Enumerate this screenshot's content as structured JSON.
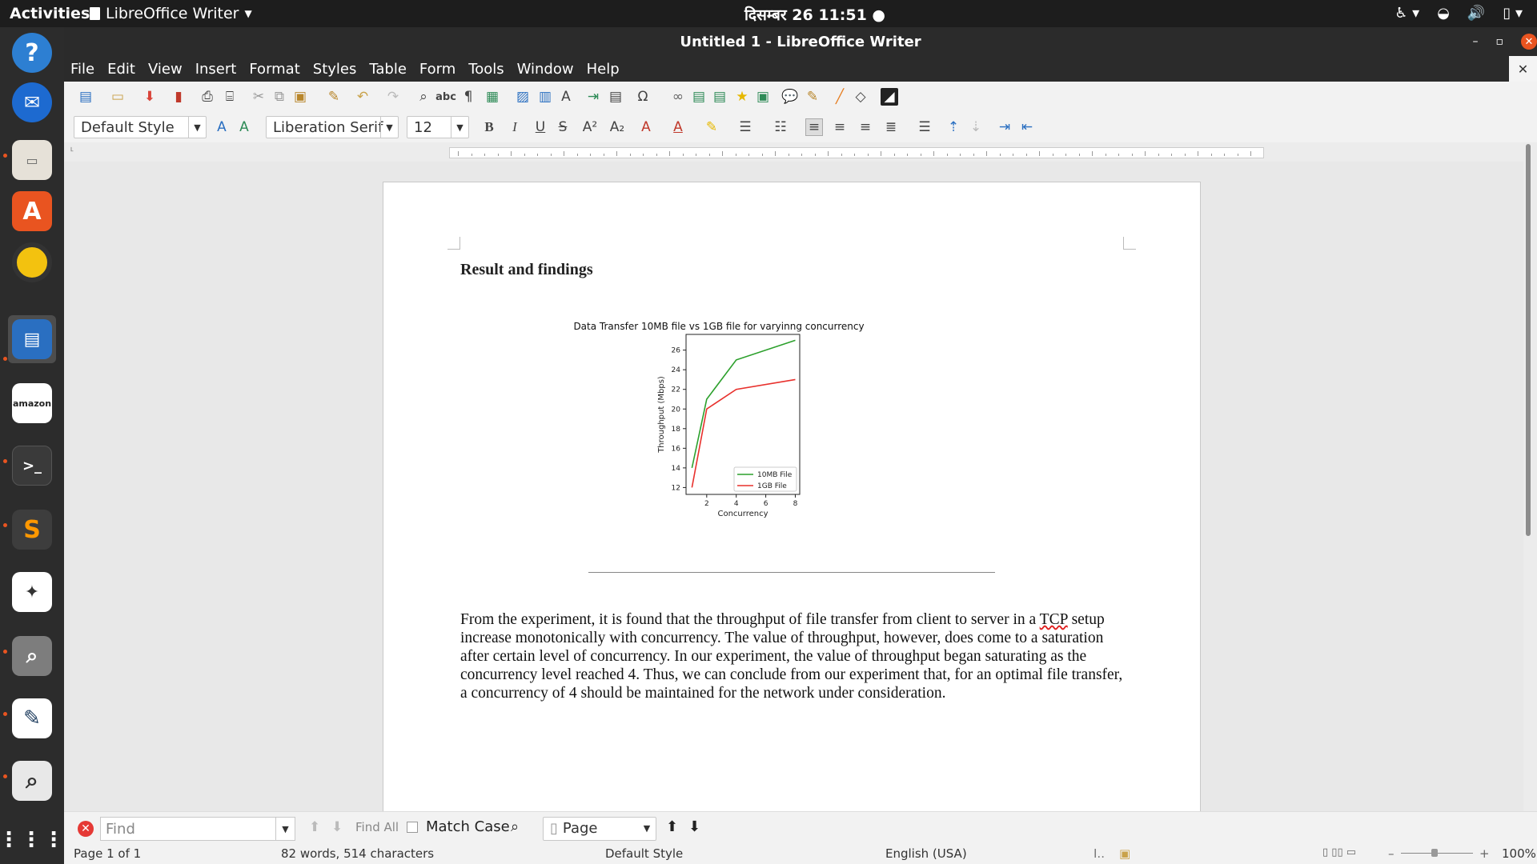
{
  "topbar": {
    "activities": "Activities",
    "app_name": "LibreOffice Writer",
    "clock": "दिसम्बर 26  11:51"
  },
  "dock": {
    "items": [
      {
        "name": "help",
        "icon": "help-icon"
      },
      {
        "name": "thunderbird",
        "icon": "mail-icon"
      },
      {
        "name": "files",
        "icon": "folder-icon"
      },
      {
        "name": "software",
        "icon": "software-store-icon"
      },
      {
        "name": "rhythmbox",
        "icon": "music-icon"
      },
      {
        "name": "writer",
        "icon": "writer-icon"
      },
      {
        "name": "amazon",
        "icon": "amazon-icon"
      },
      {
        "name": "terminal",
        "icon": "terminal-icon"
      },
      {
        "name": "sublime",
        "icon": "sublime-icon"
      },
      {
        "name": "wizard",
        "icon": "wizard-icon"
      },
      {
        "name": "magnifier",
        "icon": "magnifier-icon"
      },
      {
        "name": "inkscape",
        "icon": "inkscape-icon"
      },
      {
        "name": "search",
        "icon": "search-icon"
      },
      {
        "name": "apps",
        "icon": "app-grid-icon"
      }
    ]
  },
  "window": {
    "title": "Untitled 1 - LibreOffice Writer"
  },
  "menu": [
    "File",
    "Edit",
    "View",
    "Insert",
    "Format",
    "Styles",
    "Table",
    "Form",
    "Tools",
    "Window",
    "Help"
  ],
  "format": {
    "para_style": "Default Style",
    "font_name": "Liberation Serif",
    "font_size": "12"
  },
  "document": {
    "heading": "Result and findings",
    "paragraph_before": "From the experiment, it is found that the throughput of file transfer from client to server in a ",
    "paragraph_flag": "TCP",
    "paragraph_after": " setup increase monotonically with concurrency. The value of throughput, however, does come to a saturation after certain level of concurrency. In our experiment, the value of throughput began saturating as the concurrency level reached 4. Thus, we can conclude from our experiment that, for an optimal file transfer, a concurrency of 4 should be maintained for the network under consideration."
  },
  "chart_data": {
    "type": "line",
    "title": "Data Transfer 10MB file vs 1GB file for varyinng concurrency",
    "xlabel": "Concurrency",
    "ylabel": "Throughput (Mbps)",
    "x": [
      1,
      2,
      4,
      8
    ],
    "xticks": [
      2,
      4,
      6,
      8
    ],
    "yticks": [
      12,
      14,
      16,
      18,
      20,
      22,
      24,
      26
    ],
    "xlim": [
      0.6,
      8.3
    ],
    "ylim": [
      11.3,
      27.6
    ],
    "legend_position": "lower-right",
    "series": [
      {
        "name": "10MB File",
        "color": "#2ca02c",
        "values": [
          14,
          21,
          25,
          27
        ]
      },
      {
        "name": "1GB File",
        "color": "#e8302c",
        "values": [
          12,
          20,
          22,
          23
        ]
      }
    ]
  },
  "findbar": {
    "placeholder": "Find",
    "find_all": "Find All",
    "match_case": "Match Case",
    "search_scope": "Page"
  },
  "status": {
    "page": "Page 1 of 1",
    "words": "82 words, 514 characters",
    "style": "Default Style",
    "language": "English (USA)",
    "zoom": "100%"
  }
}
